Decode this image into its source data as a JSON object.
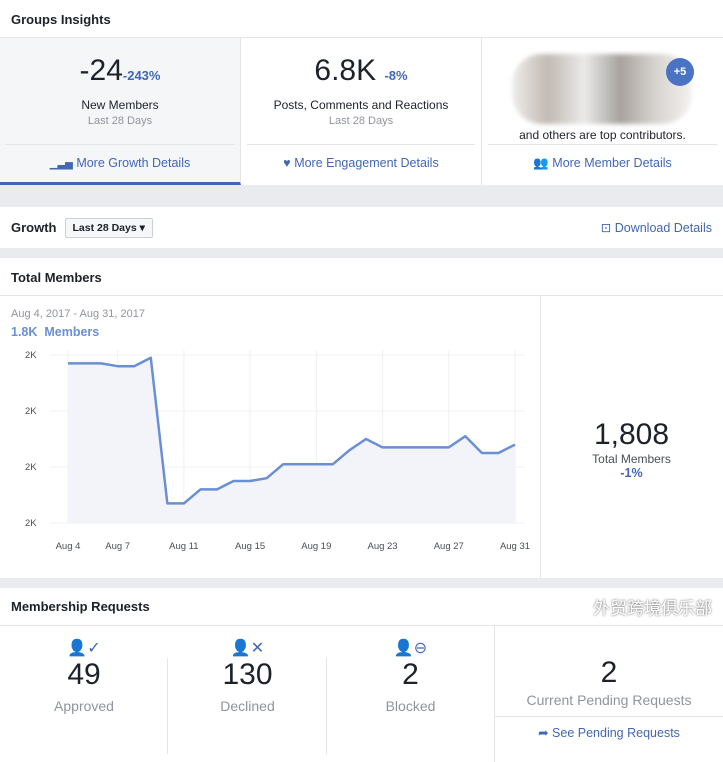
{
  "header": {
    "title": "Groups Insights"
  },
  "stats": [
    {
      "value": "-24",
      "change": "-243%",
      "label": "New Members",
      "period": "Last 28 Days",
      "link": "More Growth Details",
      "icon": "bar-chart-icon"
    },
    {
      "value": "6.8K",
      "change": "-8%",
      "label": "Posts, Comments and Reactions",
      "period": "Last 28 Days",
      "link": "More Engagement Details",
      "icon": "heart-pulse-icon"
    },
    {
      "badge": "+5",
      "caption": "and others are top contributors.",
      "link": "More Member Details",
      "icon": "people-icon"
    }
  ],
  "growth": {
    "label": "Growth",
    "dropdown": "Last 28 Days",
    "download": "Download Details"
  },
  "total_members": {
    "title": "Total Members",
    "range": "Aug 4, 2017 - Aug 31, 2017",
    "summary": "1.8K  Members",
    "big_value": "1,808",
    "big_label": "Total Members",
    "big_change": "-1%"
  },
  "chart_data": {
    "type": "area",
    "x": [
      "Aug 4",
      "Aug 5",
      "Aug 6",
      "Aug 7",
      "Aug 8",
      "Aug 9",
      "Aug 10",
      "Aug 11",
      "Aug 12",
      "Aug 13",
      "Aug 14",
      "Aug 15",
      "Aug 16",
      "Aug 17",
      "Aug 18",
      "Aug 19",
      "Aug 20",
      "Aug 21",
      "Aug 22",
      "Aug 23",
      "Aug 24",
      "Aug 25",
      "Aug 26",
      "Aug 27",
      "Aug 28",
      "Aug 29",
      "Aug 30",
      "Aug 31"
    ],
    "values": [
      1837,
      1837,
      1837,
      1836,
      1836,
      1839,
      1787,
      1787,
      1792,
      1792,
      1795,
      1795,
      1796,
      1801,
      1801,
      1801,
      1801,
      1806,
      1810,
      1807,
      1807,
      1807,
      1807,
      1807,
      1811,
      1805,
      1805,
      1808
    ],
    "x_tick_labels": [
      "Aug 4",
      "Aug 7",
      "Aug 11",
      "Aug 15",
      "Aug 19",
      "Aug 23",
      "Aug 27",
      "Aug 31"
    ],
    "y_ticks": [
      1840,
      1820,
      1800,
      1780
    ],
    "y_tick_labels": [
      "2K",
      "2K",
      "2K",
      "2K"
    ],
    "ylim": [
      1780,
      1840
    ],
    "grid": true,
    "color": "#6a8fd4"
  },
  "membership": {
    "title": "Membership Requests",
    "items": [
      {
        "value": "49",
        "label": "Approved",
        "icon": "user-check-icon"
      },
      {
        "value": "130",
        "label": "Declined",
        "icon": "user-x-icon"
      },
      {
        "value": "2",
        "label": "Blocked",
        "icon": "user-blocked-icon"
      }
    ],
    "pending_value": "2",
    "pending_label": "Current Pending Requests",
    "pending_link": "See Pending Requests"
  },
  "watermark": "外贸跨境俱乐部",
  "colors": {
    "accent": "#4267b2",
    "line": "#6a8fd4"
  }
}
